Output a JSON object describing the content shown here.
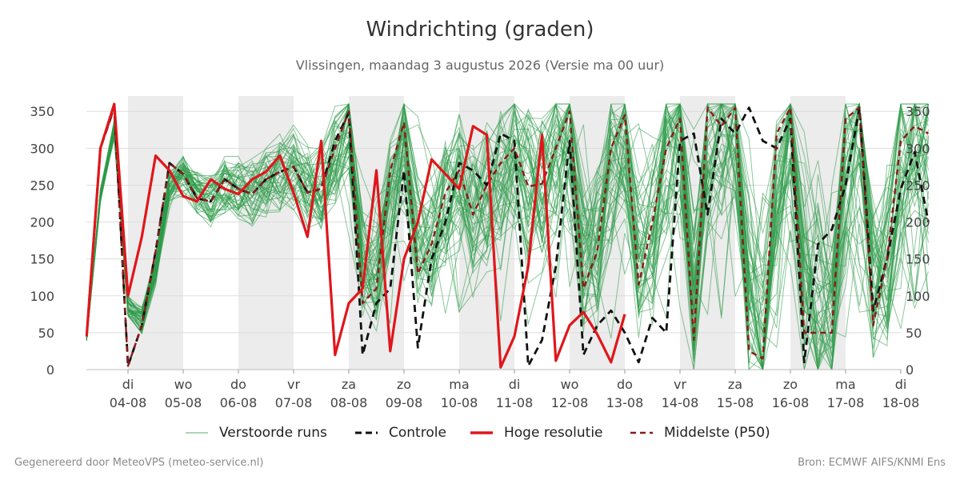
{
  "title": "Windrichting (graden)",
  "subtitle": "Vlissingen, maandag  3 augustus 2026 (Versie ma 00 uur)",
  "footer": {
    "left": "Gegenereerd door MeteoVPS (meteo-service.nl)",
    "right": "Bron: ECMWF AIFS/KNMI Ens"
  },
  "legend": {
    "ensemble": "Verstoorde runs",
    "control": "Controle",
    "highres": "Hoge resolutie",
    "median": "Middelste (P50)"
  },
  "colors": {
    "ensemble": "#2e9b48",
    "control": "#111111",
    "highres": "#e0161b",
    "median": "#8b1a1a",
    "shade": "#ececec",
    "grid": "#dddddd"
  },
  "chart_data": {
    "type": "line",
    "title": "Windrichting (graden)",
    "ylim": [
      0,
      360
    ],
    "y_ticks": [
      0,
      50,
      100,
      150,
      200,
      250,
      300,
      350
    ],
    "x_range_days": [
      -0.75,
      14.0
    ],
    "x_ticks": [
      {
        "day": "di",
        "date": "04-08"
      },
      {
        "day": "wo",
        "date": "05-08"
      },
      {
        "day": "do",
        "date": "06-08"
      },
      {
        "day": "vr",
        "date": "07-08"
      },
      {
        "day": "za",
        "date": "08-08"
      },
      {
        "day": "zo",
        "date": "09-08"
      },
      {
        "day": "ma",
        "date": "10-08"
      },
      {
        "day": "di",
        "date": "11-08"
      },
      {
        "day": "wo",
        "date": "12-08"
      },
      {
        "day": "do",
        "date": "13-08"
      },
      {
        "day": "vr",
        "date": "14-08"
      },
      {
        "day": "za",
        "date": "15-08"
      },
      {
        "day": "zo",
        "date": "16-08"
      },
      {
        "day": "ma",
        "date": "17-08"
      },
      {
        "day": "di",
        "date": "18-08"
      }
    ],
    "grid": true,
    "legend_position": "bottom",
    "shaded_days": [
      0,
      2,
      4,
      6,
      8,
      10,
      12
    ],
    "step_days": 0.25,
    "ensemble_members": 50,
    "series": [
      {
        "name": "Controle",
        "style": "dashed",
        "values": [
          45,
          300,
          355,
          5,
          60,
          160,
          280,
          265,
          232,
          228,
          258,
          245,
          238,
          258,
          268,
          275,
          240,
          245,
          310,
          348,
          20,
          90,
          110,
          270,
          30,
          150,
          200,
          280,
          270,
          250,
          320,
          310,
          5,
          40,
          140,
          310,
          20,
          60,
          80,
          50,
          10,
          70,
          50,
          310,
          320,
          210,
          340,
          320,
          355,
          310,
          300,
          340,
          10,
          170,
          190,
          250,
          355,
          80,
          150,
          245,
          295,
          200
        ]
      },
      {
        "name": "Hoge resolutie",
        "style": "solid",
        "values": [
          45,
          300,
          360,
          100,
          180,
          290,
          270,
          235,
          228,
          258,
          245,
          238,
          258,
          268,
          290,
          240,
          180,
          310,
          20,
          90,
          110,
          270,
          25,
          150,
          200,
          285,
          265,
          245,
          330,
          318,
          3,
          45,
          140,
          318,
          12,
          60,
          78,
          48,
          10,
          75
        ]
      },
      {
        "name": "Middelste (P50)",
        "style": "dashed",
        "values": [
          45,
          300,
          355,
          5,
          60,
          160,
          280,
          265,
          232,
          228,
          258,
          245,
          238,
          258,
          268,
          275,
          240,
          245,
          300,
          350,
          90,
          110,
          270,
          335,
          130,
          170,
          240,
          270,
          210,
          250,
          280,
          300,
          248,
          252,
          300,
          350,
          110,
          160,
          300,
          345,
          115,
          200,
          300,
          340,
          40,
          355,
          330,
          355,
          25,
          15,
          320,
          355,
          50,
          50,
          50,
          340,
          355,
          60,
          150,
          310,
          330,
          320
        ]
      }
    ]
  }
}
